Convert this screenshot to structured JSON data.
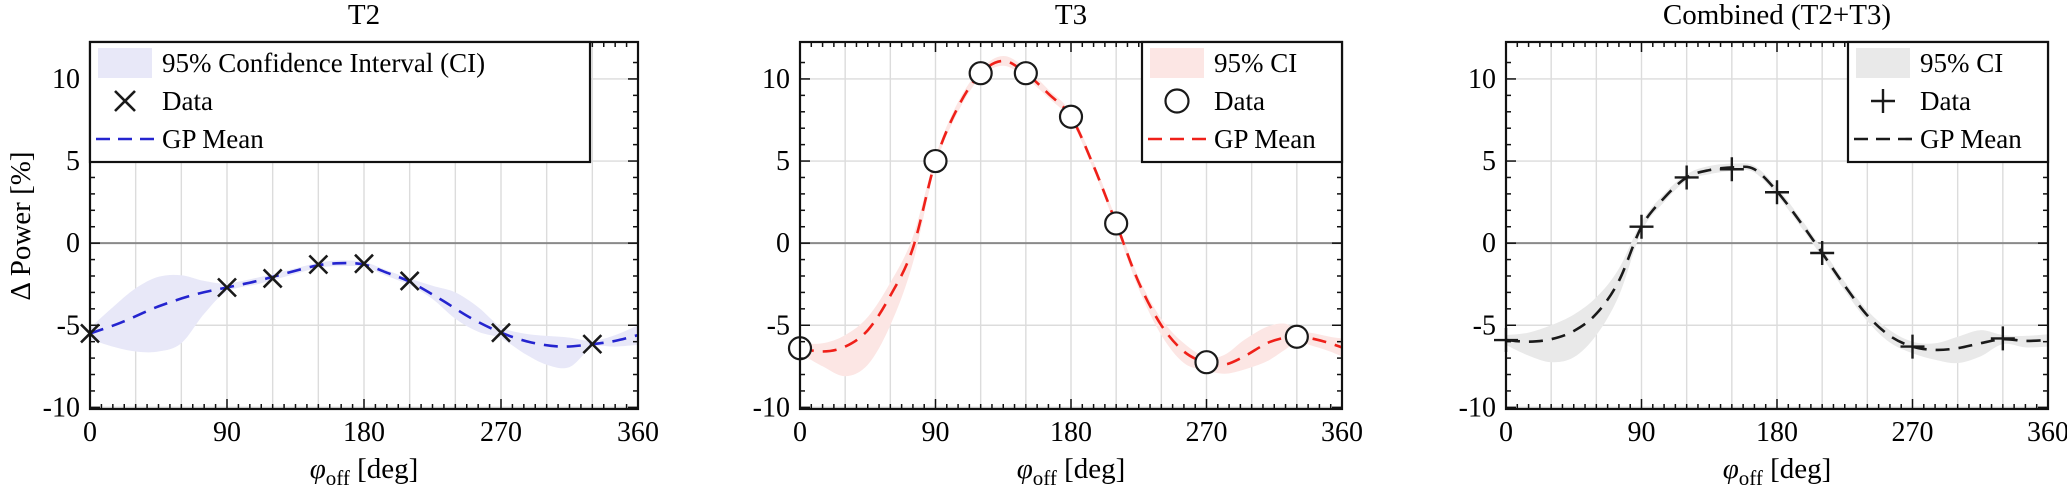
{
  "figure_title": "",
  "axes": {
    "ylabel": "Δ Power [%]",
    "xlabel_symbol": "φ",
    "xlabel_subscript": "off",
    "xlabel_unit": "[deg]",
    "xticks": [
      0,
      90,
      180,
      270,
      360
    ],
    "yticks": [
      -10,
      -5,
      0,
      5,
      10
    ],
    "xlim": [
      0,
      360
    ],
    "ylim": [
      -10.1,
      12.25
    ]
  },
  "colors": {
    "grid": "#dcdcdc",
    "zero_line": "#8a8a8a",
    "axis": "#111111",
    "marker": "#1a1a1a"
  },
  "chart_data": [
    {
      "type": "line",
      "title": "T2",
      "xlabel": "phi_off [deg]",
      "ylabel": "Δ Power [%]",
      "xlim": [
        0,
        360
      ],
      "ylim": [
        -10,
        12
      ],
      "grid": true,
      "legend_position": "northwest",
      "legend": [
        {
          "label": "95% Confidence Interval (CI)",
          "type": "patch"
        },
        {
          "label": "Data",
          "type": "marker"
        },
        {
          "label": "GP Mean",
          "type": "dashed-line"
        }
      ],
      "marker": "x",
      "line_color": "#2424cf",
      "ci_color": "#e8e8f8",
      "data_points": [
        [
          0,
          -5.5
        ],
        [
          90,
          -2.7
        ],
        [
          120,
          -2.15
        ],
        [
          150,
          -1.3
        ],
        [
          180,
          -1.25
        ],
        [
          210,
          -2.3
        ],
        [
          270,
          -5.45
        ],
        [
          330,
          -6.15
        ]
      ],
      "gp_mean": [
        [
          0,
          -5.5
        ],
        [
          20,
          -4.85
        ],
        [
          45,
          -3.85
        ],
        [
          70,
          -3.1
        ],
        [
          90,
          -2.7
        ],
        [
          110,
          -2.3
        ],
        [
          130,
          -1.8
        ],
        [
          150,
          -1.35
        ],
        [
          165,
          -1.22
        ],
        [
          180,
          -1.3
        ],
        [
          195,
          -1.8
        ],
        [
          210,
          -2.35
        ],
        [
          230,
          -3.4
        ],
        [
          250,
          -4.55
        ],
        [
          270,
          -5.45
        ],
        [
          290,
          -6.05
        ],
        [
          310,
          -6.3
        ],
        [
          330,
          -6.15
        ],
        [
          345,
          -5.95
        ],
        [
          360,
          -5.6
        ]
      ],
      "ci_upper": [
        [
          0,
          -5.15
        ],
        [
          15,
          -3.9
        ],
        [
          30,
          -2.75
        ],
        [
          45,
          -2.05
        ],
        [
          60,
          -1.95
        ],
        [
          75,
          -2.3
        ],
        [
          90,
          -2.45
        ],
        [
          110,
          -2.1
        ],
        [
          130,
          -1.65
        ],
        [
          150,
          -1.2
        ],
        [
          165,
          -1.05
        ],
        [
          180,
          -1.15
        ],
        [
          195,
          -1.65
        ],
        [
          210,
          -2.15
        ],
        [
          225,
          -2.6
        ],
        [
          240,
          -3.0
        ],
        [
          255,
          -3.9
        ],
        [
          270,
          -5.1
        ],
        [
          285,
          -5.5
        ],
        [
          300,
          -5.65
        ],
        [
          315,
          -5.75
        ],
        [
          330,
          -5.95
        ],
        [
          345,
          -5.6
        ],
        [
          360,
          -5.0
        ]
      ],
      "ci_lower": [
        [
          0,
          -5.85
        ],
        [
          15,
          -6.3
        ],
        [
          30,
          -6.6
        ],
        [
          45,
          -6.6
        ],
        [
          60,
          -6.1
        ],
        [
          75,
          -4.3
        ],
        [
          90,
          -2.95
        ],
        [
          110,
          -2.5
        ],
        [
          130,
          -2.0
        ],
        [
          150,
          -1.5
        ],
        [
          165,
          -1.4
        ],
        [
          180,
          -1.45
        ],
        [
          195,
          -2.0
        ],
        [
          210,
          -2.55
        ],
        [
          225,
          -3.4
        ],
        [
          240,
          -4.6
        ],
        [
          255,
          -5.4
        ],
        [
          270,
          -5.8
        ],
        [
          285,
          -6.7
        ],
        [
          300,
          -7.4
        ],
        [
          315,
          -7.55
        ],
        [
          330,
          -6.35
        ],
        [
          345,
          -6.3
        ],
        [
          360,
          -6.2
        ]
      ]
    },
    {
      "type": "line",
      "title": "T3",
      "xlabel": "phi_off [deg]",
      "ylabel": "Δ Power [%]",
      "xlim": [
        0,
        360
      ],
      "ylim": [
        -10,
        12
      ],
      "grid": true,
      "legend_position": "northeast",
      "legend": [
        {
          "label": "95% CI",
          "type": "patch"
        },
        {
          "label": "Data",
          "type": "marker"
        },
        {
          "label": "GP Mean",
          "type": "dashed-line"
        }
      ],
      "marker": "o",
      "line_color": "#ef2019",
      "ci_color": "#fce6e4",
      "data_points": [
        [
          0,
          -6.4
        ],
        [
          90,
          5.0
        ],
        [
          120,
          10.35
        ],
        [
          150,
          10.35
        ],
        [
          180,
          7.7
        ],
        [
          210,
          1.2
        ],
        [
          270,
          -7.25
        ],
        [
          330,
          -5.7
        ]
      ],
      "gp_mean": [
        [
          0,
          -6.4
        ],
        [
          15,
          -6.6
        ],
        [
          30,
          -6.3
        ],
        [
          45,
          -5.3
        ],
        [
          60,
          -3.2
        ],
        [
          75,
          -0.3
        ],
        [
          90,
          5.0
        ],
        [
          105,
          8.3
        ],
        [
          120,
          10.35
        ],
        [
          135,
          11.1
        ],
        [
          150,
          10.35
        ],
        [
          165,
          9.1
        ],
        [
          180,
          7.7
        ],
        [
          195,
          4.7
        ],
        [
          210,
          1.2
        ],
        [
          225,
          -2.4
        ],
        [
          240,
          -5.0
        ],
        [
          255,
          -6.6
        ],
        [
          270,
          -7.3
        ],
        [
          282,
          -7.4
        ],
        [
          295,
          -6.9
        ],
        [
          310,
          -6.1
        ],
        [
          322,
          -5.75
        ],
        [
          330,
          -5.65
        ],
        [
          342,
          -5.85
        ],
        [
          352,
          -6.1
        ],
        [
          360,
          -6.35
        ]
      ],
      "ci_upper": [
        [
          0,
          -6.1
        ],
        [
          15,
          -6.1
        ],
        [
          30,
          -5.6
        ],
        [
          45,
          -4.5
        ],
        [
          60,
          -2.4
        ],
        [
          75,
          0.4
        ],
        [
          90,
          5.3
        ],
        [
          105,
          8.6
        ],
        [
          120,
          10.6
        ],
        [
          135,
          11.4
        ],
        [
          150,
          10.65
        ],
        [
          165,
          9.35
        ],
        [
          180,
          7.95
        ],
        [
          195,
          4.95
        ],
        [
          210,
          1.45
        ],
        [
          225,
          -2.1
        ],
        [
          240,
          -4.6
        ],
        [
          255,
          -6.1
        ],
        [
          270,
          -6.95
        ],
        [
          282,
          -6.8
        ],
        [
          295,
          -5.9
        ],
        [
          310,
          -5.1
        ],
        [
          322,
          -4.9
        ],
        [
          330,
          -5.3
        ],
        [
          342,
          -5.5
        ],
        [
          352,
          -5.7
        ],
        [
          360,
          -5.8
        ]
      ],
      "ci_lower": [
        [
          0,
          -6.7
        ],
        [
          15,
          -7.5
        ],
        [
          30,
          -8.1
        ],
        [
          45,
          -7.4
        ],
        [
          60,
          -5.0
        ],
        [
          75,
          -1.2
        ],
        [
          90,
          4.7
        ],
        [
          105,
          8.0
        ],
        [
          120,
          10.1
        ],
        [
          135,
          10.8
        ],
        [
          150,
          10.05
        ],
        [
          165,
          8.85
        ],
        [
          180,
          7.45
        ],
        [
          195,
          4.45
        ],
        [
          210,
          0.95
        ],
        [
          225,
          -2.8
        ],
        [
          240,
          -5.6
        ],
        [
          255,
          -7.3
        ],
        [
          270,
          -7.75
        ],
        [
          282,
          -7.95
        ],
        [
          295,
          -7.7
        ],
        [
          310,
          -7.2
        ],
        [
          322,
          -6.5
        ],
        [
          330,
          -6.05
        ],
        [
          342,
          -6.3
        ],
        [
          352,
          -6.6
        ],
        [
          360,
          -6.9
        ]
      ]
    },
    {
      "type": "line",
      "title": "Combined (T2+T3)",
      "xlabel": "phi_off [deg]",
      "ylabel": "Δ Power [%]",
      "xlim": [
        0,
        360
      ],
      "ylim": [
        -10,
        12
      ],
      "grid": true,
      "legend_position": "northeast",
      "legend": [
        {
          "label": "95% CI",
          "type": "patch"
        },
        {
          "label": "Data",
          "type": "marker"
        },
        {
          "label": "GP Mean",
          "type": "dashed-line"
        }
      ],
      "marker": "+",
      "line_color": "#1a1a1a",
      "ci_color": "#e9e9e9",
      "data_points": [
        [
          0,
          -5.9
        ],
        [
          90,
          1.0
        ],
        [
          120,
          4.0
        ],
        [
          150,
          4.5
        ],
        [
          180,
          3.1
        ],
        [
          210,
          -0.6
        ],
        [
          270,
          -6.3
        ],
        [
          330,
          -5.8
        ]
      ],
      "gp_mean": [
        [
          0,
          -5.9
        ],
        [
          15,
          -6.0
        ],
        [
          30,
          -5.85
        ],
        [
          45,
          -5.35
        ],
        [
          60,
          -4.3
        ],
        [
          75,
          -2.3
        ],
        [
          90,
          1.0
        ],
        [
          105,
          2.75
        ],
        [
          120,
          4.0
        ],
        [
          135,
          4.45
        ],
        [
          152,
          4.62
        ],
        [
          165,
          4.5
        ],
        [
          180,
          3.15
        ],
        [
          195,
          1.35
        ],
        [
          210,
          -0.6
        ],
        [
          225,
          -2.6
        ],
        [
          240,
          -4.4
        ],
        [
          255,
          -5.65
        ],
        [
          270,
          -6.3
        ],
        [
          285,
          -6.5
        ],
        [
          300,
          -6.4
        ],
        [
          315,
          -6.1
        ],
        [
          330,
          -5.85
        ],
        [
          345,
          -5.95
        ],
        [
          360,
          -5.9
        ]
      ],
      "ci_upper": [
        [
          0,
          -5.6
        ],
        [
          15,
          -5.45
        ],
        [
          30,
          -5.0
        ],
        [
          45,
          -4.35
        ],
        [
          60,
          -3.3
        ],
        [
          75,
          -1.55
        ],
        [
          90,
          1.3
        ],
        [
          105,
          3.0
        ],
        [
          120,
          4.2
        ],
        [
          135,
          4.7
        ],
        [
          152,
          4.85
        ],
        [
          165,
          4.7
        ],
        [
          180,
          3.4
        ],
        [
          195,
          1.6
        ],
        [
          210,
          -0.35
        ],
        [
          225,
          -2.35
        ],
        [
          240,
          -4.1
        ],
        [
          255,
          -5.3
        ],
        [
          270,
          -6.0
        ],
        [
          285,
          -6.1
        ],
        [
          300,
          -5.7
        ],
        [
          315,
          -5.3
        ],
        [
          330,
          -5.6
        ],
        [
          345,
          -5.65
        ],
        [
          360,
          -5.55
        ]
      ],
      "ci_lower": [
        [
          0,
          -6.2
        ],
        [
          15,
          -6.85
        ],
        [
          30,
          -7.25
        ],
        [
          45,
          -6.95
        ],
        [
          60,
          -5.6
        ],
        [
          75,
          -3.2
        ],
        [
          90,
          0.7
        ],
        [
          105,
          2.5
        ],
        [
          120,
          3.8
        ],
        [
          135,
          4.2
        ],
        [
          152,
          4.4
        ],
        [
          165,
          4.3
        ],
        [
          180,
          2.9
        ],
        [
          195,
          1.1
        ],
        [
          210,
          -0.85
        ],
        [
          225,
          -2.9
        ],
        [
          240,
          -4.75
        ],
        [
          255,
          -6.05
        ],
        [
          270,
          -6.7
        ],
        [
          285,
          -7.1
        ],
        [
          300,
          -7.3
        ],
        [
          315,
          -6.9
        ],
        [
          330,
          -6.15
        ],
        [
          345,
          -6.35
        ],
        [
          360,
          -6.3
        ]
      ]
    }
  ]
}
